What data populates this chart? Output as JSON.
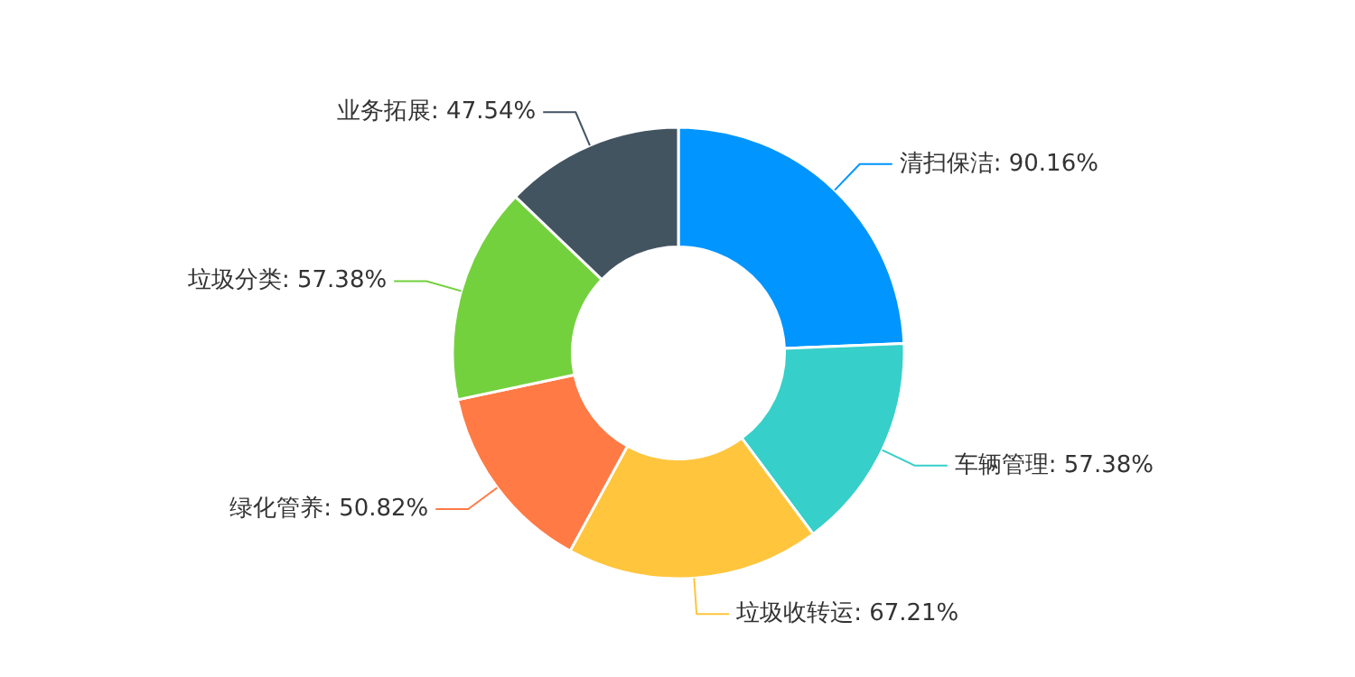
{
  "chart_data": {
    "type": "donut",
    "categories": [
      "清扫保洁",
      "车辆管理",
      "垃圾收转运",
      "绿化管养",
      "垃圾分类",
      "业务拓展"
    ],
    "values": [
      90.16,
      57.38,
      67.21,
      50.82,
      57.38,
      47.54
    ],
    "value_labels": [
      "90.16%",
      "57.38%",
      "67.21%",
      "50.82%",
      "57.38%",
      "47.54%"
    ],
    "colors": [
      "#0095ff",
      "#36cfc9",
      "#ffc53d",
      "#ff7a45",
      "#73d13d",
      "#435461"
    ]
  }
}
